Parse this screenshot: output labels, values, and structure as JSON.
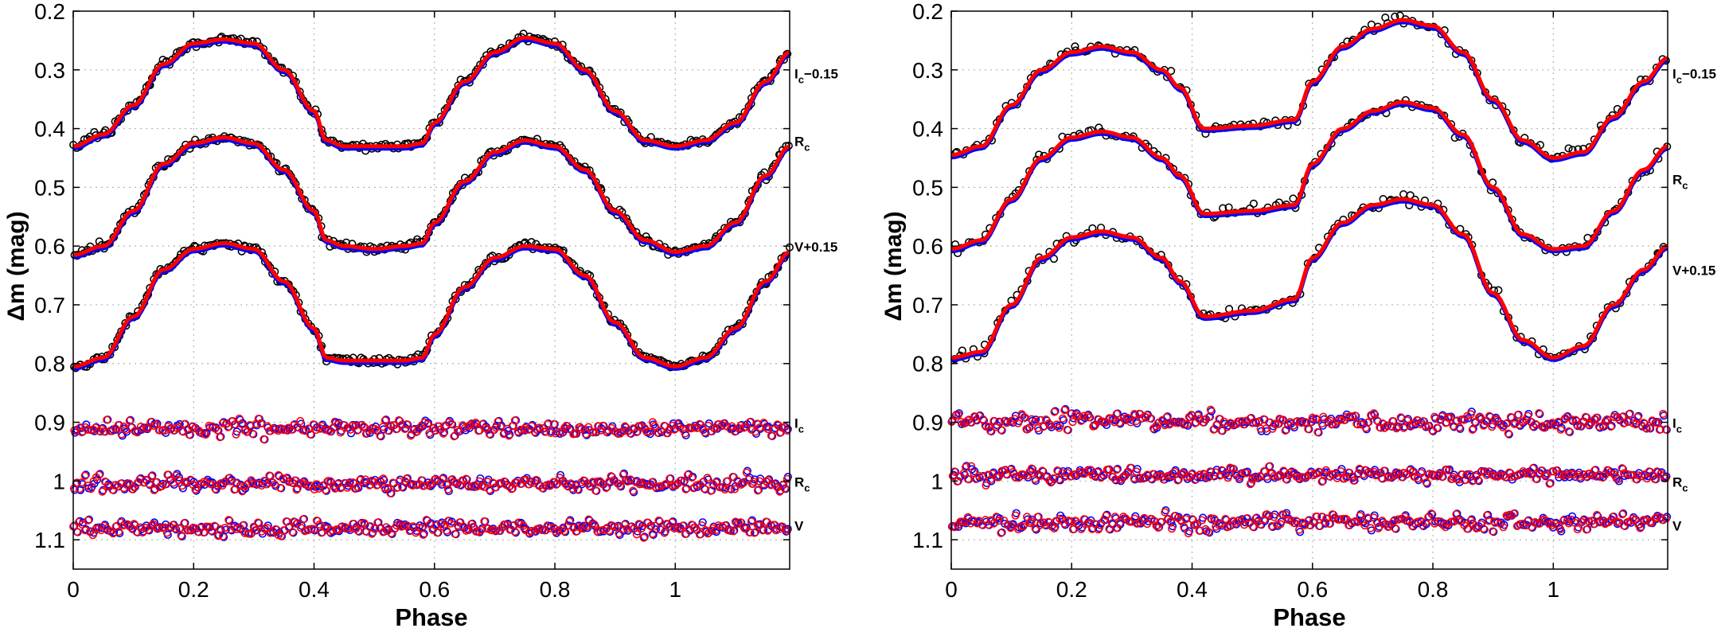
{
  "chart_data": [
    {
      "type": "scatter",
      "panel": "left",
      "title": "",
      "xlabel": "Phase",
      "ylabel": "Δm (mag)",
      "xlim": [
        0,
        1.19
      ],
      "ylim": [
        1.15,
        0.2
      ],
      "y_inverted": true,
      "grid": true,
      "xticks": [
        0,
        0.2,
        0.4,
        0.6,
        0.8,
        1
      ],
      "xtick_labels": [
        "0",
        "0.2",
        "0.4",
        "0.6",
        "0.8",
        "1"
      ],
      "yticks": [
        0.2,
        0.3,
        0.4,
        0.5,
        0.6,
        0.7,
        0.8,
        0.9,
        1,
        1.1
      ],
      "ytick_labels": [
        "0.2",
        "0.3",
        "0.4",
        "0.5",
        "0.6",
        "0.7",
        "0.8",
        "0.9",
        "1",
        "1.1"
      ],
      "band_labels": [
        {
          "text": "I",
          "sub": "c",
          "suffix": "−0.15",
          "y": 0.305
        },
        {
          "text": "R",
          "sub": "c",
          "suffix": "",
          "y": 0.42
        },
        {
          "text": "V+0.15",
          "sub": "",
          "suffix": "",
          "y": 0.6
        },
        {
          "text": "I",
          "sub": "c",
          "suffix": "",
          "y": 0.9
        },
        {
          "text": "R",
          "sub": "c",
          "suffix": "",
          "y": 1.0
        },
        {
          "text": "V",
          "sub": "",
          "suffix": "",
          "y": 1.075
        }
      ],
      "light_curves": [
        {
          "name": "Ic-0.15",
          "phase": [
            0,
            0.05,
            0.1,
            0.15,
            0.2,
            0.25,
            0.3,
            0.35,
            0.4,
            0.42,
            0.45,
            0.5,
            0.55,
            0.58,
            0.6,
            0.65,
            0.7,
            0.75,
            0.8,
            0.85,
            0.9,
            0.95,
            1.0,
            1.05,
            1.1,
            1.15,
            1.19
          ],
          "mag": [
            0.43,
            0.41,
            0.36,
            0.29,
            0.255,
            0.248,
            0.255,
            0.3,
            0.37,
            0.42,
            0.43,
            0.43,
            0.43,
            0.425,
            0.39,
            0.32,
            0.27,
            0.245,
            0.255,
            0.3,
            0.37,
            0.42,
            0.43,
            0.42,
            0.39,
            0.32,
            0.27
          ]
        },
        {
          "name": "Rc",
          "phase": [
            0,
            0.05,
            0.1,
            0.15,
            0.2,
            0.25,
            0.3,
            0.35,
            0.4,
            0.42,
            0.45,
            0.5,
            0.55,
            0.58,
            0.6,
            0.65,
            0.7,
            0.75,
            0.8,
            0.85,
            0.9,
            0.95,
            1.0,
            1.05,
            1.1,
            1.15,
            1.19
          ],
          "mag": [
            0.615,
            0.6,
            0.54,
            0.46,
            0.425,
            0.415,
            0.425,
            0.47,
            0.54,
            0.59,
            0.6,
            0.605,
            0.6,
            0.595,
            0.56,
            0.49,
            0.44,
            0.42,
            0.43,
            0.47,
            0.54,
            0.59,
            0.61,
            0.6,
            0.56,
            0.48,
            0.43
          ]
        },
        {
          "name": "V+0.15",
          "phase": [
            0,
            0.05,
            0.1,
            0.15,
            0.2,
            0.25,
            0.3,
            0.35,
            0.4,
            0.42,
            0.45,
            0.5,
            0.55,
            0.58,
            0.6,
            0.65,
            0.7,
            0.75,
            0.8,
            0.85,
            0.9,
            0.95,
            1.0,
            1.05,
            1.1,
            1.15,
            1.19
          ],
          "mag": [
            0.805,
            0.79,
            0.72,
            0.64,
            0.605,
            0.595,
            0.605,
            0.66,
            0.74,
            0.79,
            0.795,
            0.795,
            0.795,
            0.79,
            0.75,
            0.67,
            0.62,
            0.6,
            0.605,
            0.65,
            0.73,
            0.79,
            0.805,
            0.79,
            0.74,
            0.66,
            0.61
          ]
        }
      ],
      "residuals": [
        {
          "name": "Ic",
          "mean": 0.91,
          "scatter": 0.012
        },
        {
          "name": "Rc",
          "mean": 1.005,
          "scatter": 0.012
        },
        {
          "name": "V",
          "mean": 1.08,
          "scatter": 0.013
        }
      ],
      "series_colors": {
        "observed": "#000000",
        "model_a": "#0000ff",
        "model_b": "#ff0000"
      }
    },
    {
      "type": "scatter",
      "panel": "right",
      "title": "",
      "xlabel": "Phase",
      "ylabel": "Δm (mag)",
      "xlim": [
        0,
        1.19
      ],
      "ylim": [
        1.15,
        0.2
      ],
      "y_inverted": true,
      "grid": true,
      "xticks": [
        0,
        0.2,
        0.4,
        0.6,
        0.8,
        1
      ],
      "xtick_labels": [
        "0",
        "0.2",
        "0.4",
        "0.6",
        "0.8",
        "1"
      ],
      "yticks": [
        0.2,
        0.3,
        0.4,
        0.5,
        0.6,
        0.7,
        0.8,
        0.9,
        1,
        1.1
      ],
      "ytick_labels": [
        "0.2",
        "0.3",
        "0.4",
        "0.5",
        "0.6",
        "0.7",
        "0.8",
        "0.9",
        "1",
        "1.1"
      ],
      "band_labels": [
        {
          "text": "I",
          "sub": "c",
          "suffix": "−0.15",
          "y": 0.305
        },
        {
          "text": "R",
          "sub": "c",
          "suffix": "",
          "y": 0.485
        },
        {
          "text": "V+0.15",
          "sub": "",
          "suffix": "",
          "y": 0.64
        },
        {
          "text": "I",
          "sub": "c",
          "suffix": "",
          "y": 0.9
        },
        {
          "text": "R",
          "sub": "c",
          "suffix": "",
          "y": 1.0
        },
        {
          "text": "V",
          "sub": "",
          "suffix": "",
          "y": 1.075
        }
      ],
      "light_curves": [
        {
          "name": "Ic-0.15",
          "phase": [
            0,
            0.05,
            0.1,
            0.15,
            0.2,
            0.25,
            0.3,
            0.35,
            0.38,
            0.42,
            0.5,
            0.57,
            0.6,
            0.65,
            0.7,
            0.75,
            0.8,
            0.85,
            0.9,
            0.95,
            1.0,
            1.05,
            1.1,
            1.15,
            1.19
          ],
          "mag": [
            0.445,
            0.43,
            0.36,
            0.3,
            0.27,
            0.26,
            0.27,
            0.3,
            0.33,
            0.4,
            0.395,
            0.385,
            0.32,
            0.26,
            0.23,
            0.215,
            0.225,
            0.27,
            0.35,
            0.42,
            0.45,
            0.44,
            0.38,
            0.32,
            0.28
          ]
        },
        {
          "name": "Rc",
          "phase": [
            0,
            0.05,
            0.1,
            0.15,
            0.2,
            0.25,
            0.3,
            0.35,
            0.38,
            0.42,
            0.5,
            0.57,
            0.6,
            0.65,
            0.7,
            0.75,
            0.8,
            0.85,
            0.9,
            0.95,
            1.0,
            1.05,
            1.1,
            1.15,
            1.19
          ],
          "mag": [
            0.605,
            0.59,
            0.52,
            0.45,
            0.415,
            0.405,
            0.415,
            0.45,
            0.48,
            0.545,
            0.54,
            0.53,
            0.46,
            0.4,
            0.37,
            0.355,
            0.365,
            0.41,
            0.5,
            0.58,
            0.605,
            0.6,
            0.54,
            0.47,
            0.43
          ]
        },
        {
          "name": "V+0.15",
          "phase": [
            0,
            0.05,
            0.1,
            0.15,
            0.2,
            0.25,
            0.3,
            0.35,
            0.38,
            0.42,
            0.5,
            0.57,
            0.6,
            0.65,
            0.7,
            0.75,
            0.8,
            0.85,
            0.9,
            0.95,
            1.0,
            1.05,
            1.1,
            1.15,
            1.19
          ],
          "mag": [
            0.79,
            0.78,
            0.7,
            0.62,
            0.585,
            0.575,
            0.585,
            0.62,
            0.66,
            0.72,
            0.71,
            0.69,
            0.62,
            0.56,
            0.53,
            0.52,
            0.53,
            0.58,
            0.68,
            0.76,
            0.79,
            0.77,
            0.7,
            0.64,
            0.6
          ]
        }
      ],
      "residuals": [
        {
          "name": "Ic",
          "mean": 0.9,
          "scatter": 0.016
        },
        {
          "name": "Rc",
          "mean": 0.99,
          "scatter": 0.012
        },
        {
          "name": "V",
          "mean": 1.07,
          "scatter": 0.013
        }
      ],
      "series_colors": {
        "observed": "#000000",
        "model_a": "#0000ff",
        "model_b": "#ff0000"
      }
    }
  ]
}
